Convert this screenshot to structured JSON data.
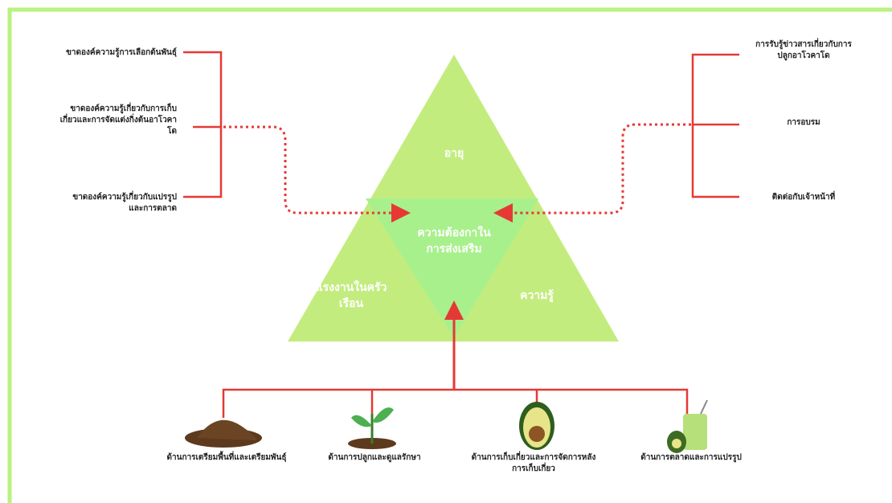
{
  "triangle": {
    "top": "อายุ",
    "center": [
      "ความต้องกาใน",
      "การส่งเสริม"
    ],
    "left": [
      "แรงงานในครัว",
      "เรือน"
    ],
    "right": "ความรู้"
  },
  "problems": [
    [
      "ขาดองค์ความรู้การเลือกต้นพันธุ์"
    ],
    [
      "ขาดองค์ความรู้เกี่ยวกับการเก็บ",
      "เกี่ยวและการจัดแต่งกิ่งต้นอาโวคา",
      "โด"
    ],
    [
      "ขาดองค์ความรู้เกี่ยวกับแปรรูป",
      "และการตลาด"
    ]
  ],
  "channels": [
    [
      "การรับรู้ข่าวสารเกี่ยวกับการ",
      "ปลูกอาโวคาโด"
    ],
    [
      "การอบรม"
    ],
    [
      "ติดต่อกับเจ้าหน้าที่"
    ]
  ],
  "aspects": [
    [
      "ด้านการเตรียมพื้นที่และเตรียมพันธุ์"
    ],
    [
      "ด้านการปลูกและดูแลรักษา"
    ],
    [
      "ด้านการเก็บเกี่ยวและการจัดการหลัง",
      "การเก็บเกี่ยว"
    ],
    [
      "ด้านการตลาดและการแปรรูป"
    ]
  ]
}
